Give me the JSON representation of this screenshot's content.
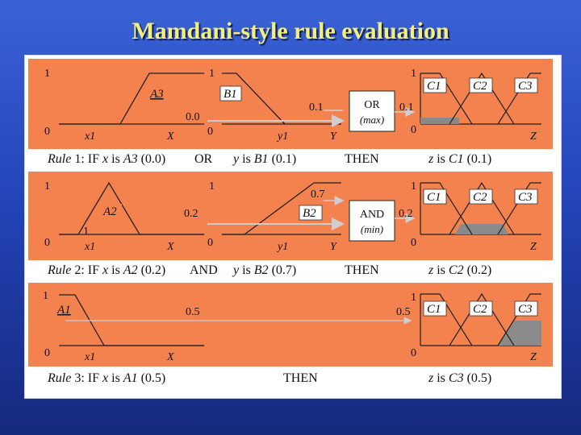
{
  "title": "Mamdani-style rule evaluation",
  "colors": {
    "background_top": "#3a63d6",
    "background_bottom": "#15297e",
    "title": "#f2f07a",
    "panel": "#f4824e",
    "rule_bar": "#ffffff",
    "clipped_fill": "#8a8a8a"
  },
  "rules": [
    {
      "x_set": "A3",
      "x_value": "0.0",
      "y_set": "B1",
      "y_value": "0.1",
      "operator": "OR",
      "operator_func": "(max)",
      "result": "0.1",
      "output_sets": [
        "C1",
        "C2",
        "C3"
      ],
      "text": {
        "rule_word": "Rule",
        "num": "1:",
        "if": "IF",
        "x": "x",
        "is1": "is",
        "set1": "A3",
        "val1": "(0.0)",
        "op": "OR",
        "y": "y",
        "is2": "is",
        "set2": "B1",
        "val2": "(0.1)",
        "then": "THEN",
        "z": "z",
        "is3": "is",
        "set3": "C1",
        "val3": "(0.1)"
      }
    },
    {
      "x_set": "A2",
      "x_value": "0.2",
      "y_set": "B2",
      "y_value": "0.7",
      "operator": "AND",
      "operator_func": "(min)",
      "result": "0.2",
      "output_sets": [
        "C1",
        "C2",
        "C3"
      ],
      "text": {
        "rule_word": "Rule",
        "num": "2:",
        "if": "IF",
        "x": "x",
        "is1": "is",
        "set1": "A2",
        "val1": "(0.2)",
        "op": "AND",
        "y": "y",
        "is2": "is",
        "set2": "B2",
        "val2": "(0.7)",
        "then": "THEN",
        "z": "z",
        "is3": "is",
        "set3": "C2",
        "val3": "(0.2)"
      }
    },
    {
      "x_set": "A1",
      "x_value": "0.5",
      "result": "0.5",
      "output_sets": [
        "C1",
        "C2",
        "C3"
      ],
      "text": {
        "rule_word": "Rule",
        "num": "3:",
        "if": "IF",
        "x": "x",
        "is1": "is",
        "set1": "A1",
        "val1": "(0.5)",
        "then": "THEN",
        "z": "z",
        "is3": "is",
        "set3": "C3",
        "val3": "(0.5)"
      }
    }
  ],
  "axis": {
    "one": "1",
    "zero": "0",
    "x1": "x1",
    "y1": "y1",
    "X": "X",
    "Y": "Y",
    "Z": "Z"
  }
}
